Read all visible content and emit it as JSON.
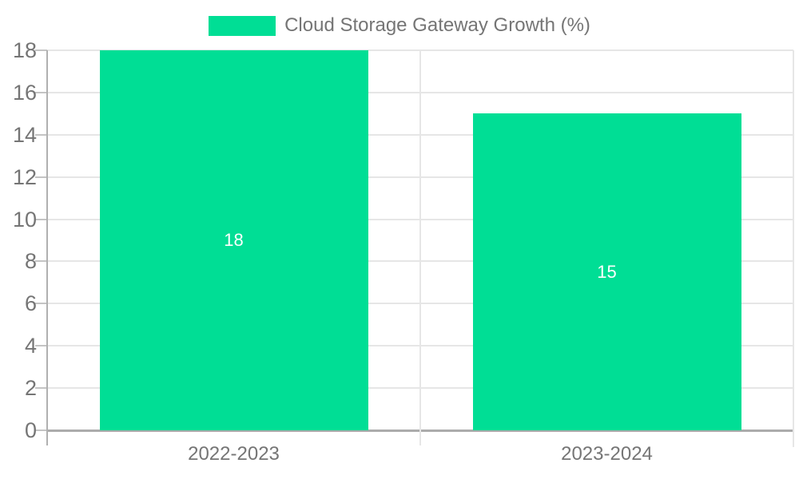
{
  "chart_data": {
    "type": "bar",
    "title": "Cloud Storage Gateway Growth (%)",
    "categories": [
      "2022-2023",
      "2023-2024"
    ],
    "series": [
      {
        "name": "Cloud Storage Gateway Growth (%)",
        "values": [
          18,
          15
        ]
      }
    ],
    "value_labels": [
      "18",
      "15"
    ],
    "ytick_labels": [
      "0",
      "2",
      "4",
      "6",
      "8",
      "10",
      "12",
      "14",
      "16",
      "18"
    ],
    "ylim": [
      0,
      18
    ],
    "ytick_step": 2,
    "grid": true,
    "legend_position": "top",
    "xlabel": "",
    "ylabel": ""
  },
  "colors": {
    "bar": "#00de95",
    "value_label": "#ffffff",
    "axis_text": "#757575",
    "gridline": "#e6e6e6",
    "axis_line": "#b0b0b0",
    "baseline": "#ababab"
  },
  "legend": {
    "label": "Cloud Storage Gateway Growth (%)"
  }
}
